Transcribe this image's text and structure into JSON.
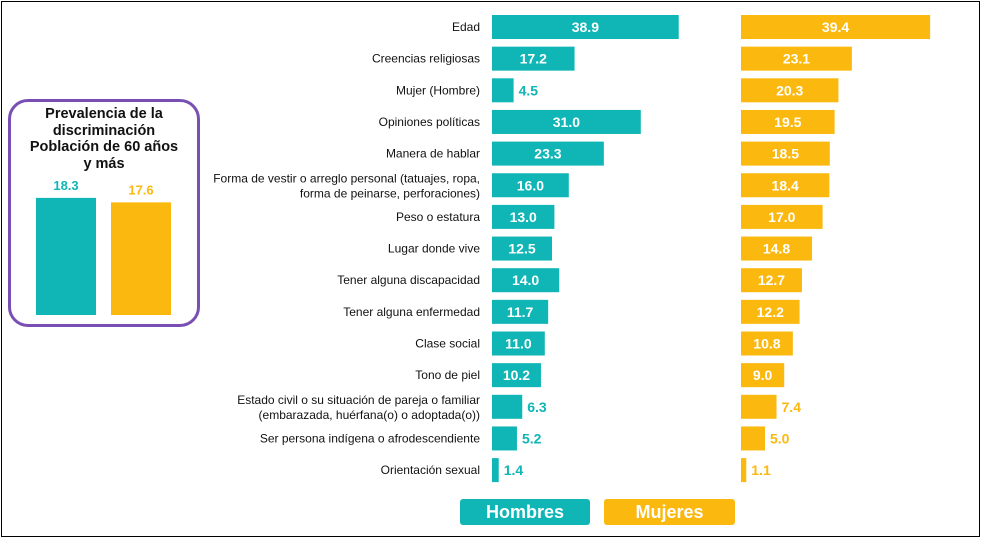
{
  "colors": {
    "hombres": "#10b5b5",
    "mujeres": "#fbb80f",
    "border": "#7a4fb4"
  },
  "inset": {
    "title_lines": [
      "Prevalencia de la",
      "discriminación",
      "Población de 60 años",
      "y más"
    ],
    "values": [
      18.3,
      17.6
    ]
  },
  "legend": {
    "hombres": "Hombres",
    "mujeres": "Mujeres"
  },
  "chart_data": {
    "type": "bar",
    "orientation": "horizontal",
    "categories": [
      [
        "Edad"
      ],
      [
        "Creencias religiosas"
      ],
      [
        "Mujer (Hombre)"
      ],
      [
        "Opiniones políticas"
      ],
      [
        "Manera de hablar"
      ],
      [
        "Forma de vestir o arreglo personal (tatuajes, ropa,",
        "forma de peinarse, perforaciones)"
      ],
      [
        "Peso o estatura"
      ],
      [
        "Lugar donde vive"
      ],
      [
        "Tener alguna discapacidad"
      ],
      [
        "Tener alguna enfermedad"
      ],
      [
        "Clase social"
      ],
      [
        "Tono de piel"
      ],
      [
        "Estado civil o su situación de pareja o familiar",
        "(embarazada, huérfana(o) o adoptada(o))"
      ],
      [
        "Ser persona indígena o afrodescendiente"
      ],
      [
        "Orientación sexual"
      ]
    ],
    "series": [
      {
        "name": "Hombres",
        "values": [
          38.9,
          17.2,
          4.5,
          31.0,
          23.3,
          16.0,
          13.0,
          12.5,
          14.0,
          11.7,
          11.0,
          10.2,
          6.3,
          5.2,
          1.4
        ]
      },
      {
        "name": "Mujeres",
        "values": [
          39.4,
          23.1,
          20.3,
          19.5,
          18.5,
          18.4,
          17.0,
          14.8,
          12.7,
          12.2,
          10.8,
          9.0,
          7.4,
          5.0,
          1.1
        ]
      }
    ]
  }
}
